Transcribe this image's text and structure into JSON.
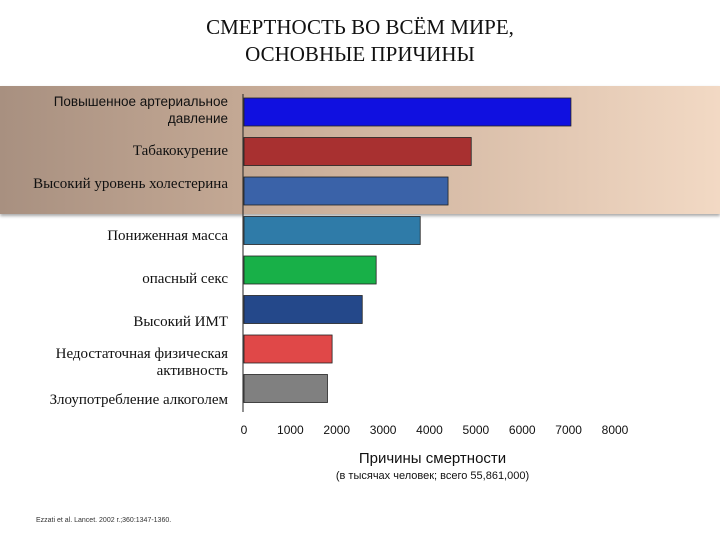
{
  "title_lines": [
    "СМЕРТНОСТЬ ВО ВСЁМ МИРЕ,",
    "ОСНОВНЫЕ ПРИЧИНЫ"
  ],
  "chart_data": {
    "type": "bar",
    "orientation": "horizontal",
    "categories": [
      "Повышенное артериальное давление",
      "Табакокурение",
      "Высокий уровень холестерина",
      "Пониженная масса",
      "опасный секс",
      "Высокий ИМТ",
      "Недостаточная физическая активность",
      "Злоупотребление алкоголем"
    ],
    "values": [
      7050,
      4900,
      4400,
      3800,
      2850,
      2550,
      1900,
      1800
    ],
    "colors": [
      "#1010e0",
      "#a83030",
      "#3a62a8",
      "#2f7ba8",
      "#18b048",
      "#24488a",
      "#e04848",
      "#808080"
    ],
    "xlim": [
      0,
      8000
    ],
    "x_ticks": [
      "0",
      "1000",
      "2000",
      "3000",
      "4000",
      "5000",
      "6000",
      "7000",
      "8000"
    ],
    "xlabel": "Причины смертности",
    "xlabel_note": "(в тысячах человек; всего 55,861,000)",
    "grid": false,
    "legend": "none"
  },
  "source": "Ezzati et al. Lancet. 2002 г.;360:1347-1360."
}
